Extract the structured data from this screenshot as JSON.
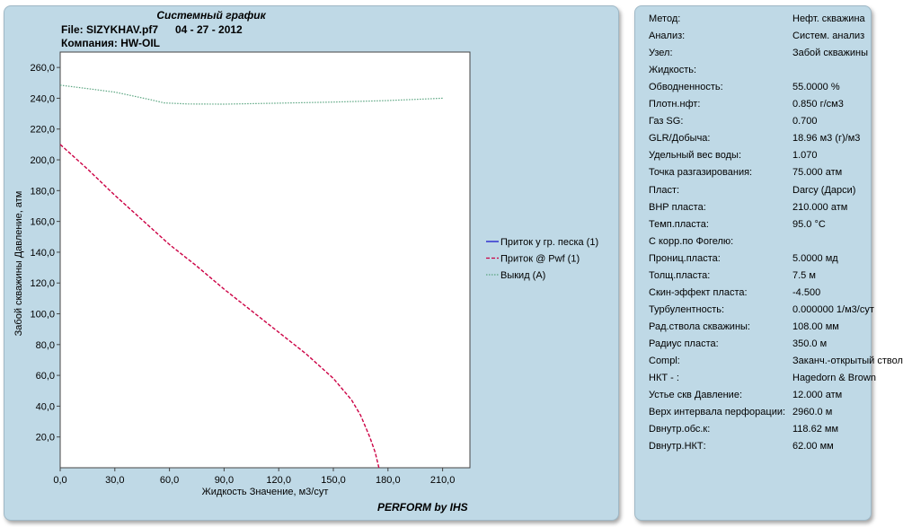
{
  "chart_panel": {
    "title": "Системный график",
    "file_label": "File: SIZYKHAV.pf7",
    "date": "04 - 27 - 2012",
    "company": "Компания: HW-OIL",
    "footer": "PERFORM by IHS"
  },
  "chart_data": {
    "type": "line",
    "xlabel": "Жидкость Значение, м3/сут",
    "ylabel": "Забой скважины Давление, атм",
    "xlim": [
      0,
      225
    ],
    "ylim": [
      0,
      270
    ],
    "x_ticks": [
      "0,0",
      "30,0",
      "60,0",
      "90,0",
      "120,0",
      "150,0",
      "180,0",
      "210,0"
    ],
    "x_tick_values": [
      0,
      30,
      60,
      90,
      120,
      150,
      180,
      210
    ],
    "y_ticks": [
      "20,0",
      "40,0",
      "60,0",
      "80,0",
      "100,0",
      "120,0",
      "140,0",
      "160,0",
      "180,0",
      "200,0",
      "220,0",
      "240,0",
      "260,0"
    ],
    "y_tick_values": [
      20,
      40,
      60,
      80,
      100,
      120,
      140,
      160,
      180,
      200,
      220,
      240,
      260
    ],
    "grid": false,
    "legend_position": "right",
    "series": [
      {
        "name": "Приток у гр. песка (1)",
        "color": "#1a1acc",
        "dash": "solid",
        "x": [],
        "y": []
      },
      {
        "name": "Приток @ Pwf (1)",
        "color": "#cc0044",
        "dash": "dashed",
        "x": [
          0,
          15,
          30,
          45,
          60,
          75,
          90,
          105,
          120,
          135,
          150,
          160,
          165,
          170,
          173,
          175
        ],
        "y": [
          210,
          194,
          177,
          161,
          145,
          131,
          116,
          102,
          88,
          74,
          58,
          44,
          34,
          20,
          10,
          0
        ]
      },
      {
        "name": "Выкид (A)",
        "color": "#5aa580",
        "dash": "dotted",
        "x": [
          0,
          10,
          20,
          30,
          40,
          50,
          57,
          70,
          90,
          120,
          150,
          180,
          210
        ],
        "y": [
          248.5,
          247,
          245.5,
          244,
          241.5,
          239,
          237,
          236.3,
          236.2,
          236.8,
          237.5,
          238.5,
          240
        ]
      }
    ]
  },
  "properties": [
    {
      "label": "Метод:",
      "value": "Нефт. скважина"
    },
    {
      "label": "Анализ:",
      "value": "Систем. анализ"
    },
    {
      "label": "Узел:",
      "value": "Забой скважины"
    },
    {
      "label": "Жидкость:",
      "value": ""
    },
    {
      "label": "Обводненность:",
      "value": "55.0000 %"
    },
    {
      "label": "Плотн.нфт:",
      "value": "0.850 г/см3"
    },
    {
      "label": "Газ SG:",
      "value": "0.700"
    },
    {
      "label": "GLR/Добыча:",
      "value": "18.96 м3 (г)/м3"
    },
    {
      "label": "Удельный вес воды:",
      "value": "1.070"
    },
    {
      "label": "Точка разгазирования:",
      "value": "75.000 атм"
    },
    {
      "label": "Пласт:",
      "value": "Darcy (Дарси)"
    },
    {
      "label": "ВНР пласта:",
      "value": "210.000 атм"
    },
    {
      "label": "Темп.пласта:",
      "value": "95.0 °C"
    },
    {
      "label": "С корр.по Фогелю:",
      "value": ""
    },
    {
      "label": "Прониц.пласта:",
      "value": "5.0000 мд"
    },
    {
      "label": "Толщ.пласта:",
      "value": "7.5 м"
    },
    {
      "label": "Скин-эффект пласта:",
      "value": "-4.500"
    },
    {
      "label": "Турбулентность:",
      "value": "0.000000 1/м3/сут"
    },
    {
      "label": "Рад.ствола скважины:",
      "value": "108.00 мм"
    },
    {
      "label": "Радиус пласта:",
      "value": "350.0 м"
    },
    {
      "label": "Compl:",
      "value": "Заканч.-открытый ствол"
    },
    {
      "label": "НКТ - :",
      "value": "Hagedorn & Brown"
    },
    {
      "label": "Устье скв Давление:",
      "value": "12.000 атм"
    },
    {
      "label": "Верх интервала перфорации:",
      "value": "2960.0 м"
    },
    {
      "label": "Dвнутр.обс.к:",
      "value": "118.62 мм"
    },
    {
      "label": "Dвнутр.НКТ:",
      "value": "62.00 мм"
    }
  ]
}
